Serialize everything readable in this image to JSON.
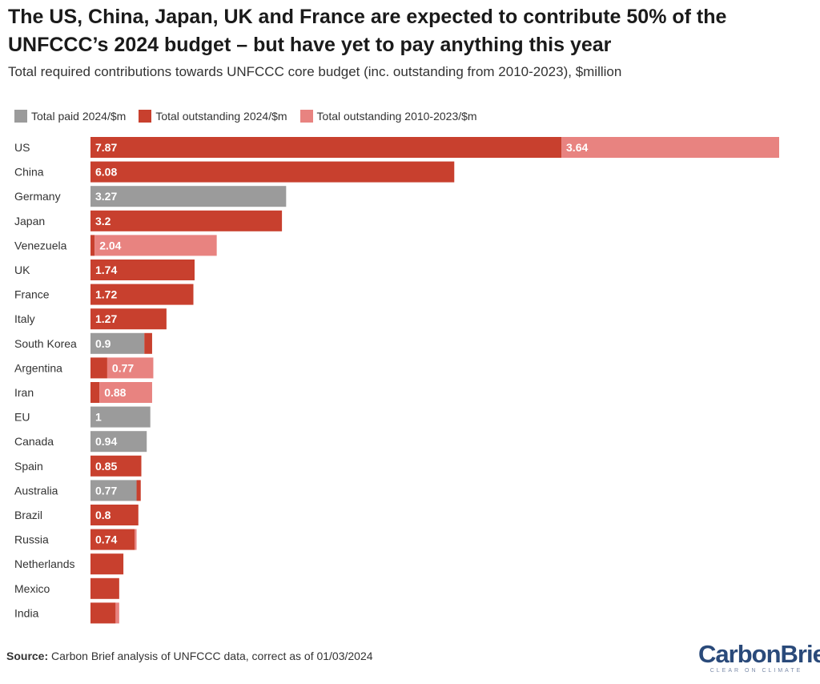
{
  "title": "The US, China, Japan, UK and France are expected to contribute 50% of the UNFCCC’s 2024 budget – but have yet to pay anything this year",
  "subtitle": "Total required contributions towards UNFCCC core budget (inc. outstanding from 2010-2023), $million",
  "source_label": "Source:",
  "source_text": " Carbon Brief analysis of UNFCCC data, correct as of 01/03/2024",
  "logo": {
    "text": "CarbonBrief",
    "tagline": "CLEAR ON CLIMATE"
  },
  "colors": {
    "paid": "#9b9b9b",
    "outstanding_2024": "#c8402e",
    "outstanding_2010_2023": "#e88380"
  },
  "chart_data": {
    "type": "bar",
    "orientation": "horizontal",
    "stacked": true,
    "legend_position": "top-left",
    "grid": false,
    "categories": [
      "US",
      "China",
      "Germany",
      "Japan",
      "Venezuela",
      "UK",
      "France",
      "Italy",
      "South Korea",
      "Argentina",
      "Iran",
      "EU",
      "Canada",
      "Spain",
      "Australia",
      "Brazil",
      "Russia",
      "Netherlands",
      "Mexico",
      "India"
    ],
    "series": [
      {
        "name": "Total paid 2024/$m",
        "color_key": "paid",
        "values": [
          0,
          0,
          3.27,
          0,
          0,
          0,
          0,
          0,
          0.9,
          0,
          0,
          1,
          0.94,
          0,
          0.77,
          0,
          0,
          0,
          0,
          0
        ],
        "labels": [
          "",
          "",
          "3.27",
          "",
          "",
          "",
          "",
          "",
          "0.9",
          "",
          "",
          "1",
          "0.94",
          "",
          "0.77",
          "",
          "",
          "",
          "",
          ""
        ]
      },
      {
        "name": "Total outstanding 2024/$m",
        "color_key": "outstanding_2024",
        "values": [
          7.87,
          6.08,
          0,
          3.2,
          0.07,
          1.74,
          1.72,
          1.27,
          0.13,
          0.28,
          0.15,
          0,
          0,
          0.85,
          0.07,
          0.8,
          0.74,
          0.55,
          0.48,
          0.42
        ],
        "labels": [
          "7.87",
          "6.08",
          "",
          "3.2",
          "",
          "1.74",
          "1.72",
          "1.27",
          "",
          "",
          "",
          "",
          "",
          "0.85",
          "",
          "0.8",
          "0.74",
          "",
          "",
          ""
        ]
      },
      {
        "name": "Total outstanding 2010-2023/$m",
        "color_key": "outstanding_2010_2023",
        "values": [
          3.64,
          0,
          0,
          0,
          2.04,
          0,
          0,
          0,
          0,
          0.77,
          0.88,
          0,
          0,
          0,
          0,
          0,
          0.03,
          0,
          0,
          0.06
        ],
        "labels": [
          "3.64",
          "",
          "",
          "",
          "2.04",
          "",
          "",
          "",
          "",
          "0.77",
          "0.88",
          "",
          "",
          "",
          "",
          "",
          "",
          "",
          "",
          ""
        ]
      }
    ],
    "xlim": [
      0,
      11.51
    ]
  }
}
